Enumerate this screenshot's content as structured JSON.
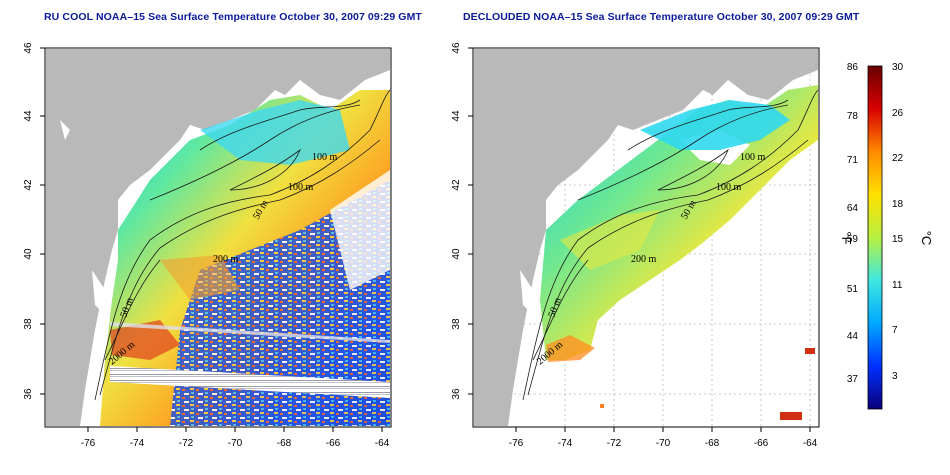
{
  "titles": {
    "left": "RU COOL NOAA–15 Sea Surface Temperature October 30, 2007 09:29 GMT",
    "right": "DECLOUDED NOAA–15 Sea Surface Temperature October 30, 2007 09:29 GMT"
  },
  "axes": {
    "lon_ticks": [
      "-76",
      "-74",
      "-72",
      "-70",
      "-68",
      "-66",
      "-64"
    ],
    "lat_ticks": [
      "36",
      "38",
      "40",
      "42",
      "44",
      "46"
    ]
  },
  "contour_labels": {
    "left": [
      "100 m",
      "100 m",
      "50 m",
      "200 m",
      "50 m",
      "2000 m"
    ],
    "right": [
      "100 m",
      "100 m",
      "50 m",
      "200 m",
      "50 m",
      "2000 m"
    ]
  },
  "colorbar": {
    "fahrenheit_unit": "°F",
    "celsius_unit": "°C",
    "fahrenheit_labels": [
      "86",
      "78",
      "71",
      "64",
      "59",
      "51",
      "44",
      "37"
    ],
    "celsius_labels": [
      "30",
      "26",
      "22",
      "18",
      "15",
      "11",
      "7",
      "3"
    ],
    "colors": [
      "#0a007a",
      "#0030ff",
      "#00a8ff",
      "#3ee8e0",
      "#b8f040",
      "#ffe000",
      "#ff8a00",
      "#d80000",
      "#6a0000"
    ]
  }
}
